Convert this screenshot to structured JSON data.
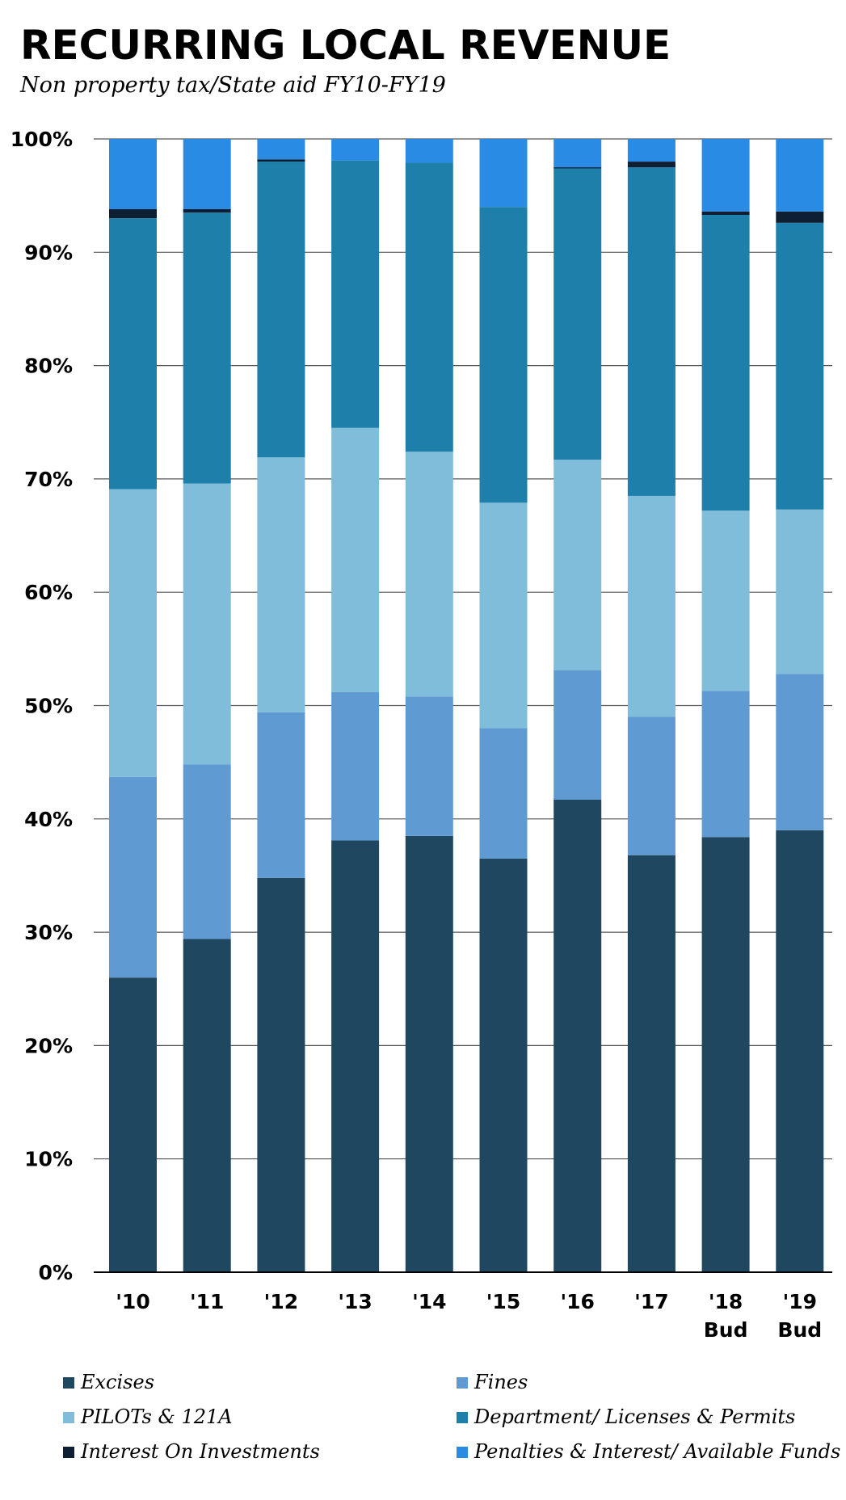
{
  "chart_data": {
    "type": "bar",
    "stacked": true,
    "title": "RECURRING LOCAL REVENUE",
    "subtitle": "Non property tax/State aid FY10-FY19",
    "categories": [
      "'10",
      "'11",
      "'12",
      "'13",
      "'14",
      "'15",
      "'16",
      "'17",
      "'18 Bud",
      "'19 Bud"
    ],
    "ylim": [
      0,
      100
    ],
    "yticks": [
      "0%",
      "10%",
      "20%",
      "30%",
      "40%",
      "50%",
      "60%",
      "70%",
      "80%",
      "90%",
      "100%"
    ],
    "grid": true,
    "legend_position": "bottom",
    "series": [
      {
        "name": "Excises",
        "color": "#1f4860",
        "values": [
          26.0,
          29.4,
          34.8,
          38.1,
          38.5,
          36.5,
          41.7,
          36.8,
          38.4,
          39.0
        ]
      },
      {
        "name": "Fines",
        "color": "#5f9bd2",
        "values": [
          17.7,
          15.4,
          14.6,
          13.1,
          12.3,
          11.5,
          11.4,
          12.2,
          12.9,
          13.8
        ]
      },
      {
        "name": "PILOTs & 121A",
        "color": "#7fbdda",
        "values": [
          25.4,
          24.8,
          22.5,
          23.3,
          21.6,
          19.9,
          18.6,
          19.5,
          15.9,
          14.5
        ]
      },
      {
        "name": "Department/ Licenses & Permits",
        "color": "#1f7fab",
        "values": [
          23.9,
          23.9,
          26.1,
          23.6,
          25.5,
          26.1,
          25.7,
          29.0,
          26.1,
          25.3
        ]
      },
      {
        "name": "Interest On Investments",
        "color": "#0e1f33",
        "values": [
          0.8,
          0.3,
          0.2,
          0.0,
          0.0,
          0.0,
          0.1,
          0.5,
          0.3,
          1.0
        ]
      },
      {
        "name": "Penalties & Interest/ Available Funds",
        "color": "#2a8be4",
        "values": [
          6.2,
          6.2,
          1.8,
          1.9,
          2.1,
          6.0,
          2.5,
          2.0,
          6.4,
          6.4
        ]
      }
    ]
  }
}
